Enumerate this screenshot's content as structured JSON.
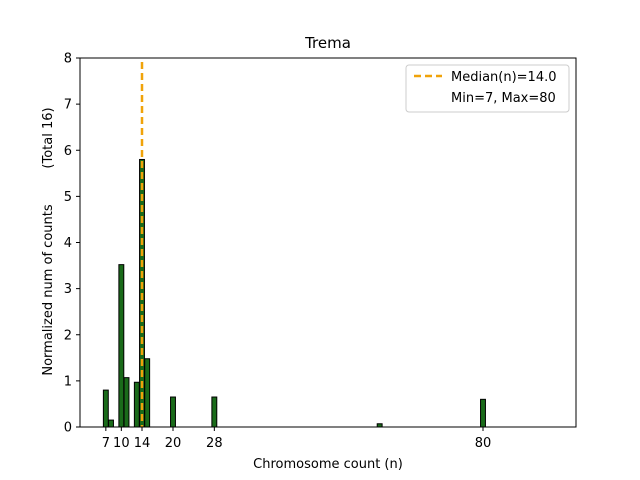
{
  "chart_data": {
    "type": "bar",
    "title": "Trema",
    "xlabel": "Chromosome count (n)",
    "ylabel": "Normalized num of counts",
    "ylabel_note": "(Total 16)",
    "xlim": [
      2,
      98
    ],
    "ylim": [
      0,
      8
    ],
    "x_ticks": [
      7,
      10,
      14,
      20,
      28,
      80
    ],
    "y_ticks": [
      0,
      1,
      2,
      3,
      4,
      5,
      6,
      7,
      8
    ],
    "bar_color": "#1a6b1a",
    "bar_edge_color": "#000000",
    "bars": [
      {
        "x": 7,
        "value": 0.8
      },
      {
        "x": 8,
        "value": 0.15
      },
      {
        "x": 10,
        "value": 3.52
      },
      {
        "x": 11,
        "value": 1.07
      },
      {
        "x": 13,
        "value": 0.97
      },
      {
        "x": 14,
        "value": 5.8
      },
      {
        "x": 15,
        "value": 1.48
      },
      {
        "x": 20,
        "value": 0.65
      },
      {
        "x": 28,
        "value": 0.65
      },
      {
        "x": 60,
        "value": 0.07
      },
      {
        "x": 80,
        "value": 0.6
      }
    ],
    "median": {
      "value": 14.0,
      "color": "#f0a30a",
      "label": "Median(n)=14.0"
    },
    "legend": {
      "placement": "top-right",
      "extra_text": "Min=7, Max=80"
    },
    "grid": false
  }
}
